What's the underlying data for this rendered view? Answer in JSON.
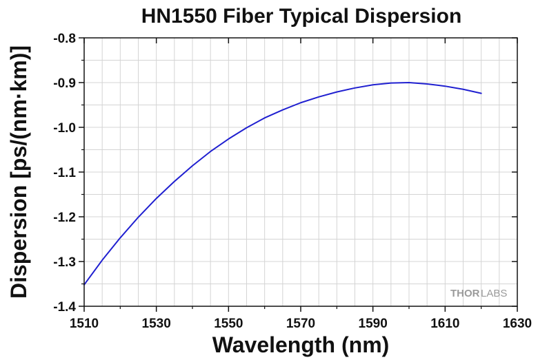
{
  "chart_data": {
    "type": "line",
    "title": "HN1550 Fiber Typical Dispersion",
    "xlabel": "Wavelength (nm)",
    "ylabel": "Dispersion [ps/(nm·km)]",
    "xlim": [
      1510,
      1630
    ],
    "ylim": [
      -1.4,
      -0.8
    ],
    "x_ticks": [
      "1510",
      "1530",
      "1550",
      "1570",
      "1590",
      "1610",
      "1630"
    ],
    "y_ticks": [
      "-0.8",
      "-0.9",
      "-1.0",
      "-1.1",
      "-1.2",
      "-1.3",
      "-1.4"
    ],
    "grid": true,
    "series": [
      {
        "color": "#1f1fd0",
        "x": [
          1510,
          1515,
          1520,
          1525,
          1530,
          1535,
          1540,
          1545,
          1550,
          1555,
          1560,
          1565,
          1570,
          1575,
          1580,
          1585,
          1590,
          1595,
          1600,
          1605,
          1610,
          1615,
          1620
        ],
        "y": [
          -1.352,
          -1.297,
          -1.247,
          -1.201,
          -1.159,
          -1.121,
          -1.086,
          -1.054,
          -1.026,
          -1.001,
          -0.979,
          -0.961,
          -0.945,
          -0.932,
          -0.921,
          -0.912,
          -0.905,
          -0.901,
          -0.9,
          -0.903,
          -0.908,
          -0.915,
          -0.924
        ]
      }
    ]
  },
  "watermark": {
    "part1": "THOR",
    "part2": "LABS"
  }
}
